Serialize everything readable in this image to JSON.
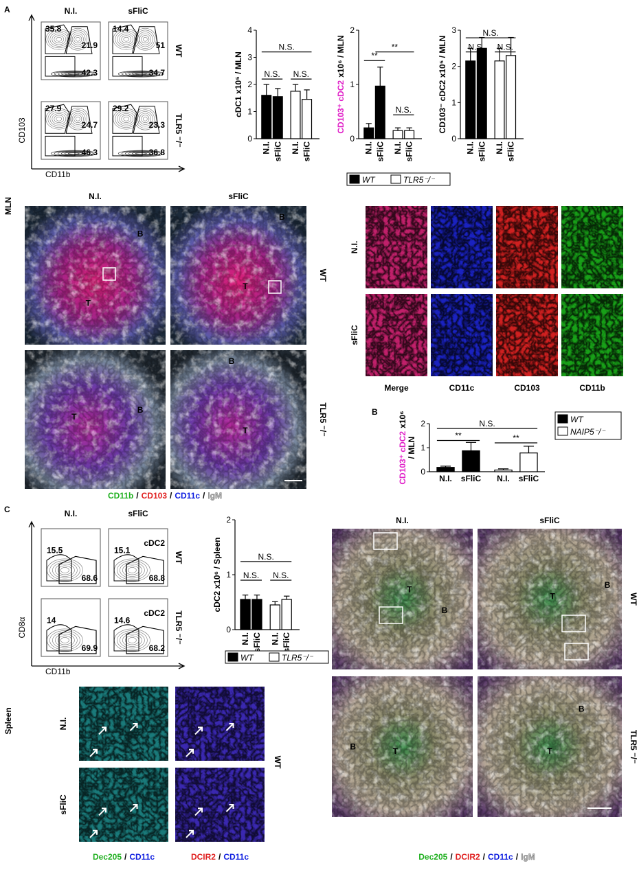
{
  "panels": {
    "a": "A",
    "b": "B",
    "c": "C"
  },
  "mln_label": "MLN",
  "spleen_label": "Spleen",
  "flow_mln": {
    "columns": [
      "N.I.",
      "sFliC"
    ],
    "rows": [
      "WT",
      "TLR5 ⁻/⁻"
    ],
    "x_axis": "CD11b",
    "y_axis": "CD103",
    "plots": [
      [
        "35.8",
        "21.9",
        "42.3"
      ],
      [
        "14.4",
        "51",
        "34.7"
      ],
      [
        "27.9",
        "24.7",
        "46.3"
      ],
      [
        "29.2",
        "23.3",
        "36.8"
      ]
    ]
  },
  "flow_spleen": {
    "columns": [
      "N.I.",
      "sFliC"
    ],
    "rows": [
      "WT",
      "TLR5 ⁻/⁻"
    ],
    "x_axis": "CD11b",
    "y_axis": "CD8α",
    "plots": [
      [
        "15.5",
        "68.6"
      ],
      [
        "15.1",
        "68.8",
        "cDC2"
      ],
      [
        "14",
        "69.9"
      ],
      [
        "14.6",
        "68.2",
        "cDC2"
      ]
    ]
  },
  "chart_data": [
    {
      "type": "bar",
      "ylabel": [
        [
          {
            "text": "cDC1 x10⁵ / MLN",
            "color": "#000000"
          }
        ]
      ],
      "categories": [
        "N.I.",
        "sFliC",
        "N.I.",
        "sFliC"
      ],
      "values": [
        1.6,
        1.55,
        1.75,
        1.45
      ],
      "errors": [
        0.4,
        0.3,
        0.25,
        0.35
      ],
      "colors": [
        "#000000",
        "#000000",
        "#ffffff",
        "#ffffff"
      ],
      "ylim": [
        0,
        4
      ],
      "yticks": [
        0,
        1,
        2,
        3,
        4
      ],
      "annotations": [
        "N.S.",
        "N.S.",
        "N.S."
      ]
    },
    {
      "type": "bar",
      "ylabel": [
        [
          {
            "text": "CD103⁺ cDC2",
            "color": "#e020c8"
          },
          {
            "text": "x10⁶ / MLN",
            "color": "#000000"
          }
        ]
      ],
      "categories": [
        "N.I.",
        "sFliC",
        "N.I.",
        "sFliC"
      ],
      "values": [
        0.2,
        0.97,
        0.15,
        0.15
      ],
      "errors": [
        0.08,
        0.35,
        0.05,
        0.05
      ],
      "colors": [
        "#000000",
        "#000000",
        "#ffffff",
        "#ffffff"
      ],
      "ylim": [
        0,
        2
      ],
      "yticks": [
        0,
        1,
        2
      ],
      "annotations": [
        "**",
        "**",
        "N.S."
      ]
    },
    {
      "type": "bar",
      "ylabel": [
        [
          {
            "text": "CD103⁻ cDC2 x10⁵ / MLN",
            "color": "#000000"
          }
        ]
      ],
      "categories": [
        "N.I.",
        "sFliC",
        "N.I.",
        "sFliC"
      ],
      "values": [
        2.15,
        2.5,
        2.15,
        2.3
      ],
      "errors": [
        0.35,
        0.3,
        0.35,
        0.5
      ],
      "colors": [
        "#000000",
        "#000000",
        "#ffffff",
        "#ffffff"
      ],
      "ylim": [
        0,
        3
      ],
      "yticks": [
        0,
        1,
        2,
        3
      ],
      "annotations": [
        "N.S.",
        "N.S.",
        "N.S."
      ]
    },
    {
      "type": "bar",
      "ylabel": [
        [
          {
            "text": "CD103⁺ cDC2",
            "color": "#e020c8"
          },
          {
            "text": "x10⁶",
            "color": "#000000"
          }
        ],
        [
          {
            "text": "/ MLN",
            "color": "#000000"
          }
        ]
      ],
      "categories": [
        "N.I.",
        "sFliC",
        "N.I.",
        "sFliC"
      ],
      "values": [
        0.18,
        0.87,
        0.07,
        0.78
      ],
      "errors": [
        0.05,
        0.35,
        0.05,
        0.28
      ],
      "colors": [
        "#000000",
        "#000000",
        "#ffffff",
        "#ffffff"
      ],
      "ylim": [
        0,
        2
      ],
      "yticks": [
        0,
        1,
        2
      ],
      "annotations": [
        "N.S.",
        "**",
        "**"
      ]
    },
    {
      "type": "bar",
      "ylabel": [
        [
          {
            "text": "cDC2 x10⁶ / Spleen",
            "color": "#000000"
          }
        ]
      ],
      "categories": [
        "N.I.",
        "sFliC",
        "N.I.",
        "sFliC"
      ],
      "values": [
        0.55,
        0.55,
        0.45,
        0.55
      ],
      "errors": [
        0.08,
        0.08,
        0.06,
        0.06
      ],
      "colors": [
        "#000000",
        "#000000",
        "#ffffff",
        "#ffffff"
      ],
      "ylim": [
        0,
        2
      ],
      "yticks": [
        0,
        1,
        2
      ],
      "annotations": [
        "N.S.",
        "N.S.",
        "N.S."
      ]
    }
  ],
  "legends": [
    [
      {
        "name": "WT",
        "color": "#000000"
      },
      {
        "name": "TLR5⁻/⁻",
        "color": "#ffffff"
      }
    ],
    [
      {
        "name": "WT",
        "color": "#000000"
      },
      {
        "name": "NAIP5⁻/⁻",
        "color": "#ffffff"
      }
    ],
    [
      {
        "name": "WT",
        "color": "#000000"
      },
      {
        "name": "TLR5⁻/⁻",
        "color": "#ffffff"
      }
    ]
  ],
  "mln_images": {
    "columns": [
      "N.I.",
      "sFliC"
    ],
    "rows": [
      "WT",
      "TLR5 ⁻/⁻"
    ],
    "labels": [
      [
        "B",
        "T"
      ],
      [
        "B",
        "T"
      ],
      [
        "T",
        "B"
      ],
      [
        "B",
        "T"
      ]
    ],
    "stain": [
      {
        "text": "CD11b",
        "color": "#20b020"
      },
      {
        "text": "/",
        "color": "#000000"
      },
      {
        "text": "CD103",
        "color": "#e02020"
      },
      {
        "text": "/",
        "color": "#000000"
      },
      {
        "text": "CD11c",
        "color": "#1020e0"
      },
      {
        "text": "/",
        "color": "#000000"
      },
      {
        "text": "IgM",
        "color": "#bbbbbb"
      }
    ]
  },
  "mln_zoom": {
    "rows": [
      "N.I.",
      "sFliC"
    ],
    "columns": [
      {
        "text": "Merge",
        "color": "#000000"
      },
      {
        "text": "CD11c",
        "color": "#1020e0"
      },
      {
        "text": "CD103",
        "color": "#e02020"
      },
      {
        "text": "CD11b",
        "color": "#20b020"
      }
    ]
  },
  "spleen_zoom": {
    "rows": [
      "N.I.",
      "sFliC"
    ],
    "group": "WT",
    "captions": [
      [
        {
          "text": "Dec205",
          "color": "#20b020"
        },
        {
          "text": "/",
          "color": "#000000"
        },
        {
          "text": "CD11c",
          "color": "#1020e0"
        }
      ],
      [
        {
          "text": "DCIR2",
          "color": "#e02020"
        },
        {
          "text": "/",
          "color": "#000000"
        },
        {
          "text": "CD11c",
          "color": "#1020e0"
        }
      ]
    ]
  },
  "spleen_images": {
    "columns": [
      "N.I.",
      "sFliC"
    ],
    "rows": [
      "WT",
      "TLR5 ⁻/⁻"
    ],
    "labels": [
      [
        "T",
        "B"
      ],
      [
        "B",
        "T"
      ],
      [
        "B",
        "T"
      ],
      [
        "B",
        "T"
      ]
    ],
    "stain": [
      {
        "text": "Dec205",
        "color": "#20b020"
      },
      {
        "text": "/",
        "color": "#000000"
      },
      {
        "text": "DCIR2",
        "color": "#e02020"
      },
      {
        "text": "/",
        "color": "#000000"
      },
      {
        "text": "CD11c",
        "color": "#1020e0"
      },
      {
        "text": "/",
        "color": "#000000"
      },
      {
        "text": "IgM",
        "color": "#bbbbbb"
      }
    ]
  }
}
